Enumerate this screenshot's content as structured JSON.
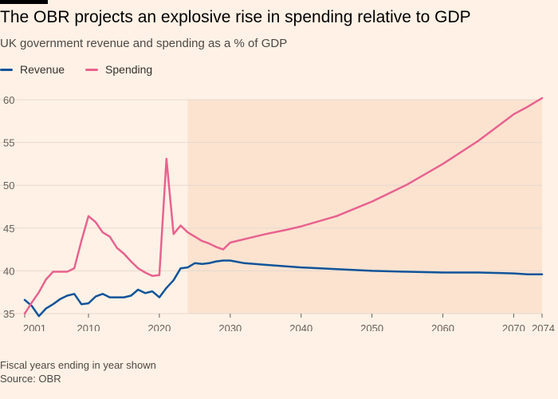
{
  "header": {
    "title": "The OBR projects an explosive rise in spending relative to GDP",
    "subtitle": "UK government revenue and spending as a % of GDP"
  },
  "footer": {
    "note": "Fiscal years ending in year shown",
    "source": "Source: OBR"
  },
  "colors": {
    "background": "#fff1e5",
    "revenue": "#0f5499",
    "spending": "#e8628f",
    "projection": "#fbe3d0",
    "grid": "#e6d9ce",
    "axis_text": "#66605c"
  },
  "chart_data": {
    "type": "line",
    "title": "The OBR projects an explosive rise in spending relative to GDP",
    "subtitle": "UK government revenue and spending as a % of GDP",
    "xlabel": "",
    "ylabel": "",
    "xlim": [
      2001,
      2074
    ],
    "ylim": [
      35,
      60
    ],
    "yticks": [
      35,
      40,
      45,
      50,
      55,
      60
    ],
    "xticks": [
      2001,
      2010,
      2020,
      2030,
      2040,
      2050,
      2060,
      2070,
      2074
    ],
    "grid": true,
    "legend_position": "top-left",
    "projection_start": 2024,
    "series": [
      {
        "name": "Revenue",
        "x": [
          2001,
          2002,
          2003,
          2004,
          2005,
          2006,
          2007,
          2008,
          2009,
          2010,
          2011,
          2012,
          2013,
          2014,
          2015,
          2016,
          2017,
          2018,
          2019,
          2020,
          2021,
          2022,
          2023,
          2024,
          2025,
          2026,
          2027,
          2028,
          2029,
          2030,
          2032,
          2035,
          2040,
          2045,
          2050,
          2055,
          2060,
          2065,
          2070,
          2072,
          2074
        ],
        "values": [
          36.6,
          35.9,
          34.7,
          35.6,
          36.1,
          36.7,
          37.1,
          37.3,
          36.1,
          36.2,
          37.0,
          37.3,
          36.9,
          36.9,
          36.9,
          37.1,
          37.8,
          37.4,
          37.6,
          36.9,
          38.0,
          38.9,
          40.3,
          40.4,
          40.9,
          40.8,
          40.9,
          41.1,
          41.2,
          41.2,
          40.9,
          40.7,
          40.4,
          40.2,
          40.0,
          39.9,
          39.8,
          39.8,
          39.7,
          39.6,
          39.6
        ]
      },
      {
        "name": "Spending",
        "x": [
          2001,
          2002,
          2003,
          2004,
          2005,
          2006,
          2007,
          2008,
          2009,
          2010,
          2011,
          2012,
          2013,
          2014,
          2015,
          2016,
          2017,
          2018,
          2019,
          2020,
          2021,
          2022,
          2023,
          2024,
          2025,
          2026,
          2027,
          2028,
          2029,
          2030,
          2032,
          2035,
          2038,
          2040,
          2045,
          2050,
          2055,
          2060,
          2065,
          2070,
          2072,
          2074
        ],
        "values": [
          35.0,
          36.3,
          37.5,
          39.0,
          39.9,
          39.9,
          39.9,
          40.3,
          43.5,
          46.4,
          45.7,
          44.5,
          44.0,
          42.7,
          42.0,
          41.1,
          40.3,
          39.8,
          39.4,
          39.5,
          53.1,
          44.3,
          45.3,
          44.5,
          44.0,
          43.5,
          43.2,
          42.8,
          42.5,
          43.3,
          43.7,
          44.3,
          44.8,
          45.2,
          46.4,
          48.1,
          50.1,
          52.5,
          55.2,
          58.3,
          59.2,
          60.2
        ]
      }
    ]
  }
}
